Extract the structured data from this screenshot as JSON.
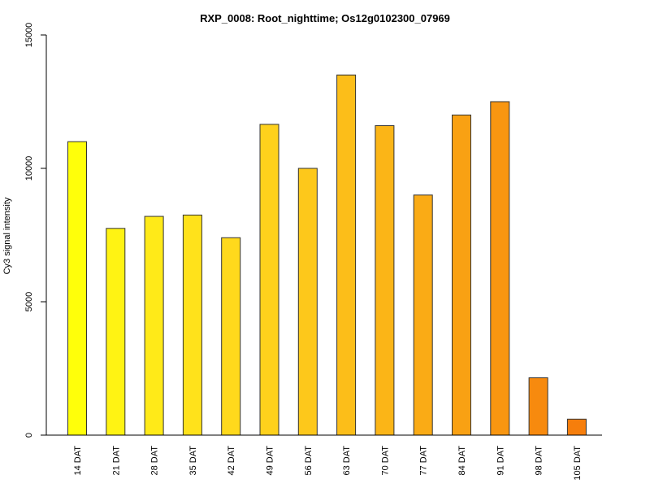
{
  "chart_data": {
    "type": "bar",
    "title": "RXP_0008: Root_nighttime; Os12g0102300_07969",
    "xlabel": "",
    "ylabel": "Cy3 signal intensity",
    "ylim": [
      0,
      15000
    ],
    "yticks": [
      0,
      5000,
      10000,
      15000
    ],
    "grid": false,
    "categories": [
      "14 DAT",
      "21 DAT",
      "28 DAT",
      "35 DAT",
      "42 DAT",
      "49 DAT",
      "56 DAT",
      "63 DAT",
      "70 DAT",
      "77 DAT",
      "84 DAT",
      "91 DAT",
      "98 DAT",
      "105 DAT"
    ],
    "values": [
      11000,
      7750,
      8200,
      8250,
      7400,
      11650,
      10000,
      13500,
      11600,
      9000,
      12000,
      12500,
      2150,
      600
    ],
    "colors": [
      "#FFFF0A",
      "#FFF313",
      "#FFEA18",
      "#FFE21B",
      "#FFD91C",
      "#FED11C",
      "#FDC81B",
      "#FCBE19",
      "#FBB517",
      "#FAAB15",
      "#F9A113",
      "#F89611",
      "#F78A0E",
      "#F67E0C"
    ]
  }
}
